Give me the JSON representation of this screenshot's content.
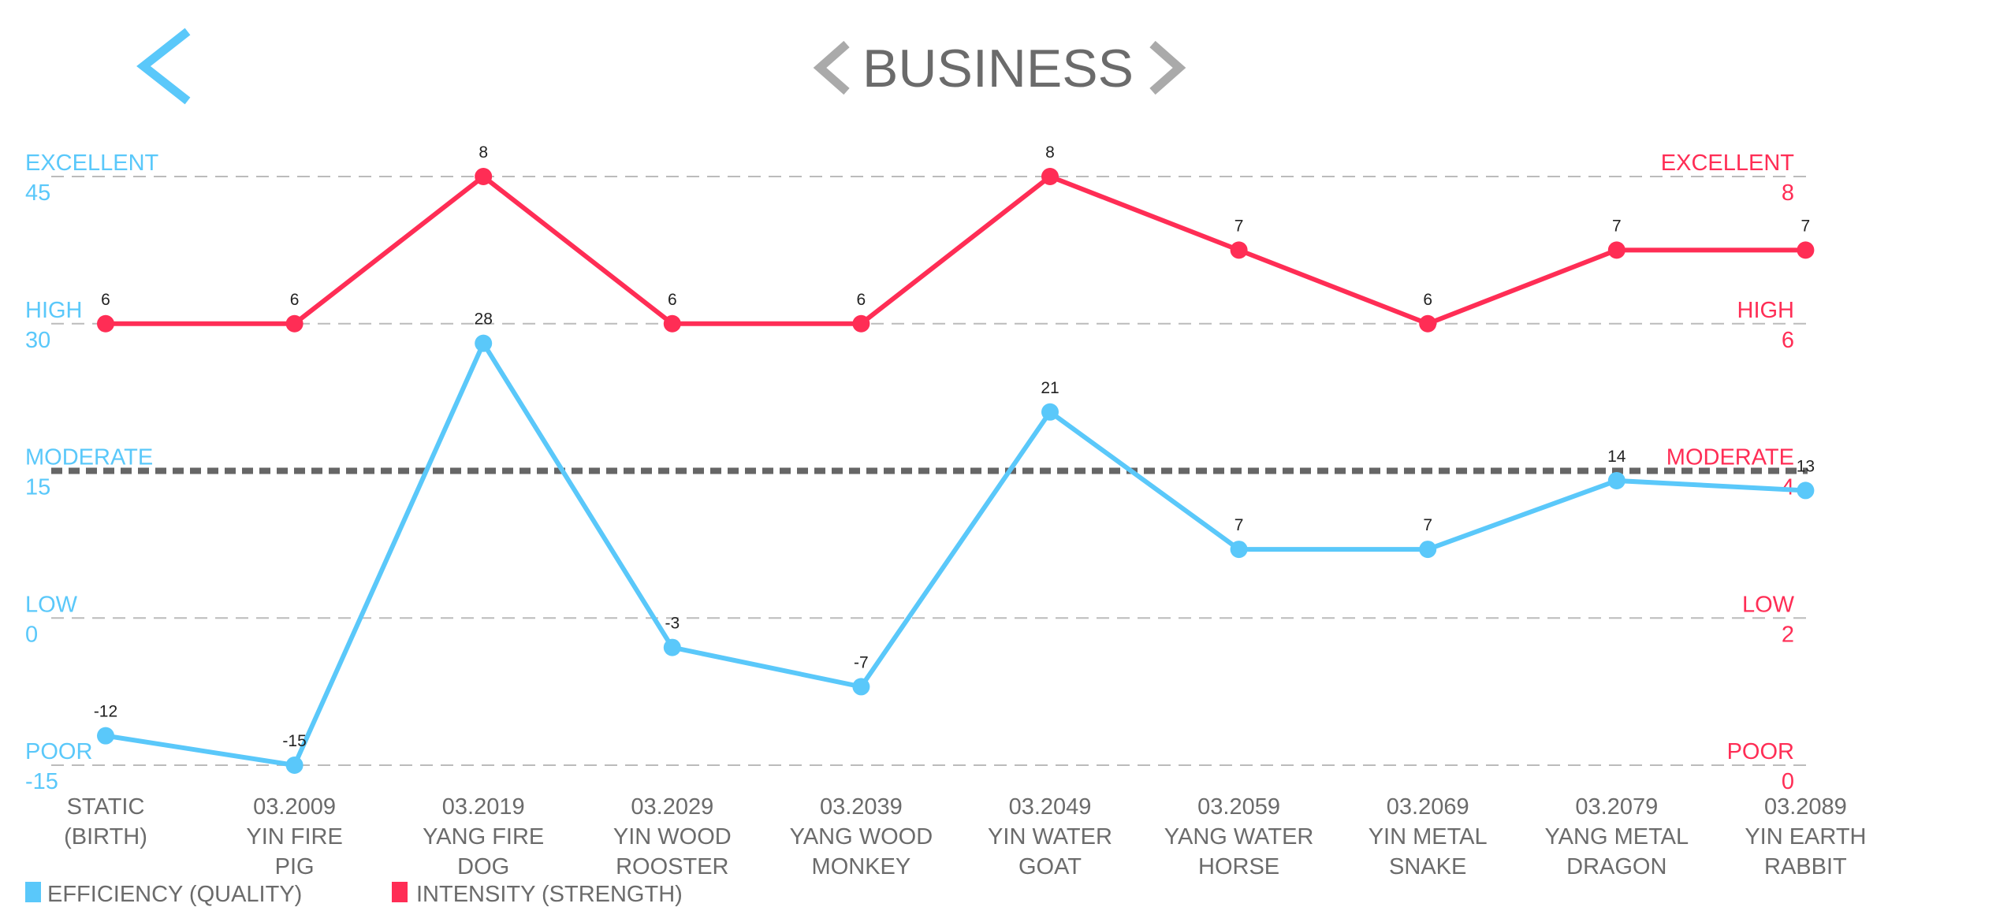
{
  "header": {
    "title": "BUSINESS",
    "back_icon": "chevron-left-icon",
    "prev_icon": "chevron-left-icon",
    "next_icon": "chevron-right-icon"
  },
  "colors": {
    "efficiency": "#5AC8FA",
    "intensity": "#FF2D55",
    "text": "#6b6b6b",
    "grid": "#bbbbbb",
    "moderate_line": "#666666"
  },
  "chart_data": {
    "type": "line",
    "title": "BUSINESS",
    "categories": [
      [
        "STATIC",
        "(BIRTH)",
        ""
      ],
      [
        "03.2009",
        "YIN FIRE",
        "PIG"
      ],
      [
        "03.2019",
        "YANG FIRE",
        "DOG"
      ],
      [
        "03.2029",
        "YIN WOOD",
        "ROOSTER"
      ],
      [
        "03.2039",
        "YANG WOOD",
        "MONKEY"
      ],
      [
        "03.2049",
        "YIN WATER",
        "GOAT"
      ],
      [
        "03.2059",
        "YANG WATER",
        "HORSE"
      ],
      [
        "03.2069",
        "YIN METAL",
        "SNAKE"
      ],
      [
        "03.2079",
        "YANG METAL",
        "DRAGON"
      ],
      [
        "03.2089",
        "YIN EARTH",
        "RABBIT"
      ]
    ],
    "series": [
      {
        "name": "EFFICIENCY (QUALITY)",
        "axis": "left",
        "values": [
          -12,
          -15,
          28,
          -3,
          -7,
          21,
          7,
          7,
          14,
          13
        ]
      },
      {
        "name": "INTENSITY (STRENGTH)",
        "axis": "right",
        "values": [
          6,
          6,
          8,
          6,
          6,
          8,
          7,
          6,
          7,
          7
        ]
      }
    ],
    "left_axis": {
      "range": [
        -15,
        45
      ],
      "ticks": [
        {
          "label": "EXCELLENT",
          "value": "45"
        },
        {
          "label": "HIGH",
          "value": "30"
        },
        {
          "label": "MODERATE",
          "value": "15"
        },
        {
          "label": "LOW",
          "value": "0"
        },
        {
          "label": "POOR",
          "value": "-15"
        }
      ]
    },
    "right_axis": {
      "range": [
        0,
        8
      ],
      "ticks": [
        {
          "label": "EXCELLENT",
          "value": "8"
        },
        {
          "label": "HIGH",
          "value": "6"
        },
        {
          "label": "MODERATE",
          "value": "4"
        },
        {
          "label": "LOW",
          "value": "2"
        },
        {
          "label": "POOR",
          "value": "0"
        }
      ]
    },
    "grid": true,
    "legend": "bottom-left"
  }
}
